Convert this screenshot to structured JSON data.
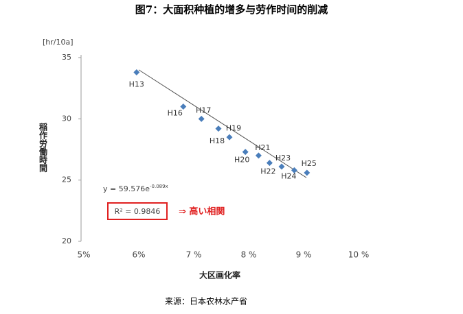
{
  "chart_data": {
    "type": "scatter",
    "title": "图7：大面积种植的增多与劳作时间的削减",
    "y_unit": "[hr/10a]",
    "y_label": "稲作労働時間",
    "x_label": "大区画化率",
    "source": "来源：日本农林水产省",
    "color": "#4a7ebb",
    "points": [
      "H13",
      "H16",
      "H17",
      "H19",
      "H18",
      "H20",
      "H21",
      "H22",
      "H23",
      "H24",
      "H25"
    ],
    "x": [
      5.96,
      6.81,
      7.14,
      7.45,
      7.65,
      7.94,
      8.18,
      8.38,
      8.6,
      8.83,
      9.06
    ],
    "y": [
      33.8,
      31.0,
      30.0,
      29.2,
      28.5,
      27.3,
      27.0,
      26.4,
      26.1,
      25.8,
      25.6
    ],
    "trendline": {
      "x": [
        6.0,
        9.05
      ],
      "y": [
        34.0,
        25.2
      ]
    },
    "equation": "y = 59.576e",
    "equation_exponent": "-0.089x",
    "r_squared": "R² = 0.9846",
    "annotation": "⇒  高い相関",
    "xlim": [
      5,
      10
    ],
    "xticks": [
      {
        "value": 5,
        "label": "5%"
      },
      {
        "value": 6,
        "label": "6%"
      },
      {
        "value": 7,
        "label": "7 %"
      },
      {
        "value": 8,
        "label": "8 %"
      },
      {
        "value": 9,
        "label": "9 %"
      },
      {
        "value": 10,
        "label": "10 %"
      }
    ],
    "ylim": [
      20,
      35
    ],
    "yticks": [
      20,
      25,
      30,
      35
    ]
  }
}
